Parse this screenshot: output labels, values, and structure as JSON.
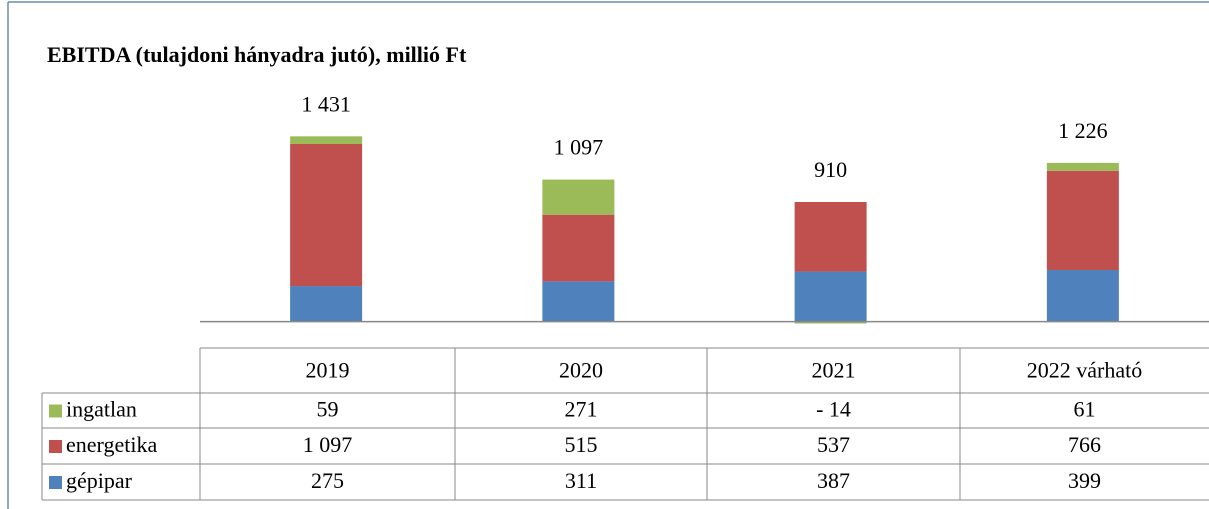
{
  "chart_data": {
    "type": "stacked_bar",
    "title": "EBITDA (tulajdoni hányadra jutó), millió Ft",
    "categories": [
      "2019",
      "2020",
      "2021",
      "2022 várható"
    ],
    "total_labels": [
      "1 431",
      "1 097",
      "910",
      "1 226"
    ],
    "series": [
      {
        "name": "ingatlan",
        "color": "#9bbb59",
        "values": [
          59,
          271,
          -14,
          61
        ],
        "value_labels": [
          "59",
          "271",
          "- 14",
          "61"
        ]
      },
      {
        "name": "energetika",
        "color": "#c0504d",
        "values": [
          1097,
          515,
          537,
          766
        ],
        "value_labels": [
          "1 097",
          "515",
          "537",
          "766"
        ]
      },
      {
        "name": "gépipar",
        "color": "#4f81bd",
        "values": [
          275,
          311,
          387,
          399
        ],
        "value_labels": [
          "275",
          "311",
          "387",
          "399"
        ]
      }
    ],
    "ylim": [
      -180,
      1750
    ]
  }
}
